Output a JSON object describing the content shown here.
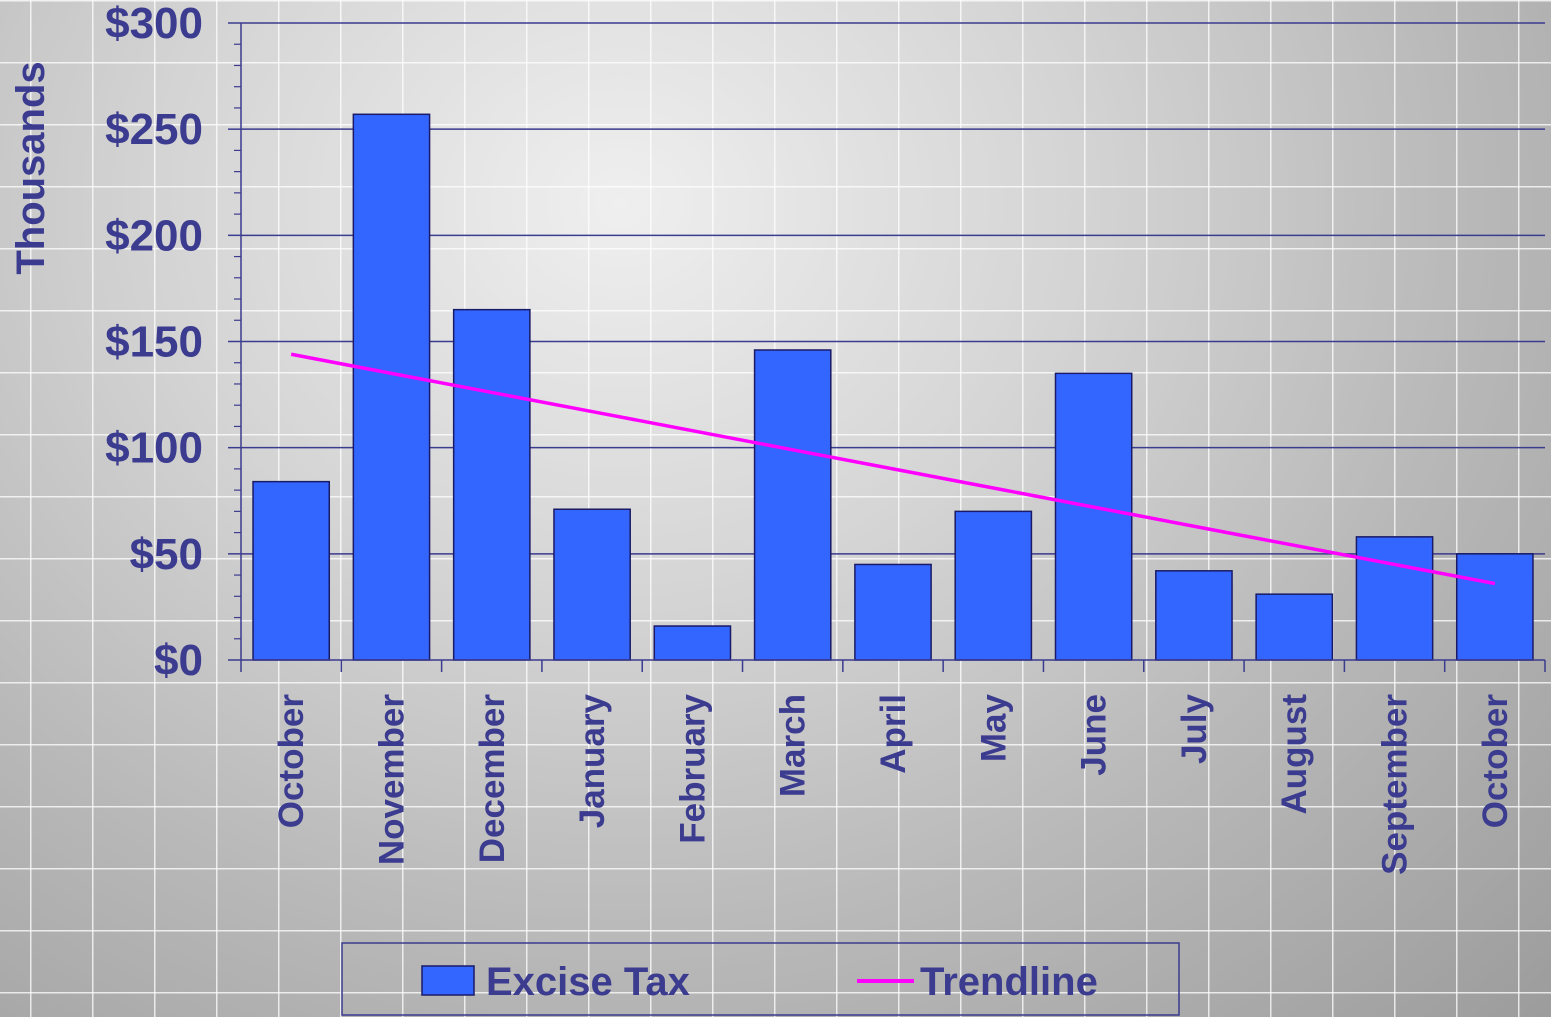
{
  "chart_data": {
    "type": "bar",
    "categories": [
      "October",
      "November",
      "December",
      "January",
      "February",
      "March",
      "April",
      "May",
      "June",
      "July",
      "August",
      "September",
      "October"
    ],
    "series": [
      {
        "name": "Excise Tax",
        "type": "bar",
        "color": "#3366ff",
        "values": [
          84,
          257,
          165,
          71,
          16,
          146,
          45,
          70,
          135,
          42,
          31,
          58,
          50
        ]
      },
      {
        "name": "Trendline",
        "type": "line",
        "color": "#ff00ff",
        "values": [
          144,
          135,
          126,
          117,
          108,
          99,
          90,
          81,
          72,
          63,
          54,
          45,
          36
        ]
      }
    ],
    "ylabel": "Thousands",
    "ylim": [
      0,
      300
    ],
    "yticks": [
      "$0",
      "$50",
      "$100",
      "$150",
      "$200",
      "$250",
      "$300"
    ],
    "ytick_values": [
      0,
      50,
      100,
      150,
      200,
      250,
      300
    ],
    "legend_position": "bottom",
    "grid": true
  },
  "colors": {
    "text": "#3b3b8f",
    "axis": "#3b3b8f",
    "bar_edge": "#1a1a66"
  }
}
